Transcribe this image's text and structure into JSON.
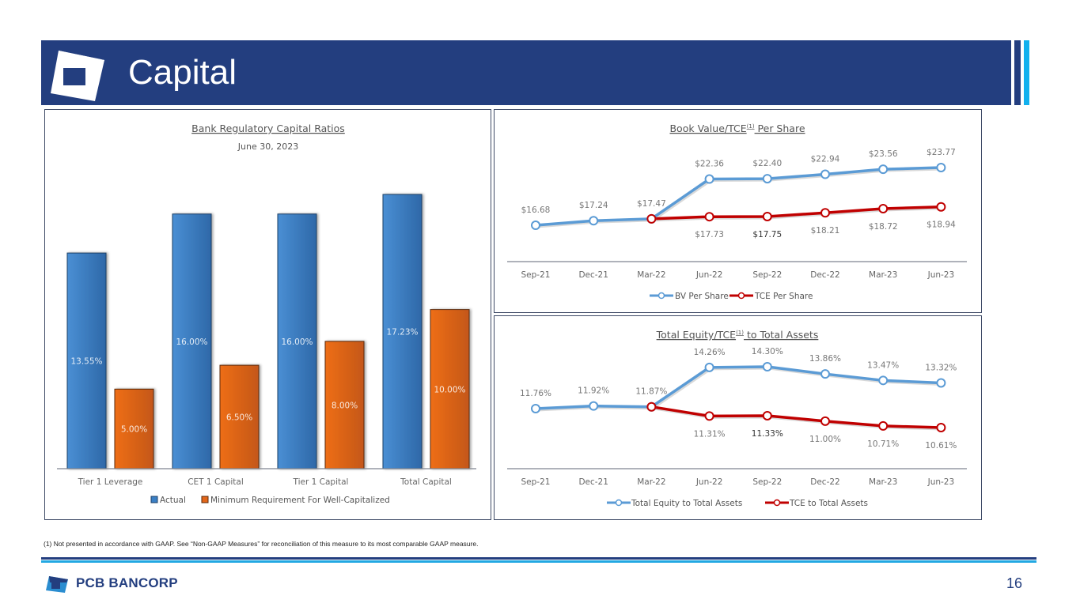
{
  "header": {
    "title": "Capital",
    "colors": {
      "banner": "#233E7F",
      "accent": "#12B0EE"
    }
  },
  "chart_data": [
    {
      "type": "bar",
      "title": "Bank Regulatory Capital Ratios",
      "subtitle": "June 30, 2023",
      "categories": [
        "Tier 1 Leverage",
        "CET 1 Capital",
        "Tier 1 Capital",
        "Total Capital"
      ],
      "series": [
        {
          "name": "Actual",
          "values": [
            13.55,
            16.0,
            16.0,
            17.23
          ],
          "labels": [
            "13.55%",
            "16.00%",
            "16.00%",
            "17.23%"
          ],
          "color": "#3A7FC4"
        },
        {
          "name": "Minimum Requirement For Well-Capitalized",
          "values": [
            5.0,
            6.5,
            8.0,
            10.0
          ],
          "labels": [
            "5.00%",
            "6.50%",
            "8.00%",
            "10.00%"
          ],
          "color": "#E2661A"
        }
      ],
      "xlabel": "",
      "ylabel": "",
      "ylim": [
        0,
        17.23
      ],
      "grid": false,
      "legend": "bottom"
    },
    {
      "type": "line",
      "title": "Book Value/TCE",
      "title_superscript": "(1)",
      "title_suffix": " Per Share",
      "categories": [
        "Sep-21",
        "Dec-21",
        "Mar-22",
        "Jun-22",
        "Sep-22",
        "Dec-22",
        "Mar-23",
        "Jun-23"
      ],
      "series": [
        {
          "name": "BV Per Share",
          "values": [
            16.68,
            17.24,
            17.47,
            22.36,
            22.4,
            22.94,
            23.56,
            23.77
          ],
          "labels": [
            "$16.68",
            "$17.24",
            "$17.47",
            "$22.36",
            "$22.40",
            "$22.94",
            "$23.56",
            "$23.77"
          ],
          "color": "#5B9BD5"
        },
        {
          "name": "TCE Per Share",
          "values": [
            null,
            null,
            17.47,
            17.73,
            17.75,
            18.21,
            18.72,
            18.94
          ],
          "labels": [
            "",
            "",
            "",
            "$17.73",
            "$17.75",
            "$18.21",
            "$18.72",
            "$18.94"
          ],
          "color": "#C00000"
        }
      ],
      "grid": false,
      "legend": "bottom"
    },
    {
      "type": "line",
      "title": "Total Equity/TCE",
      "title_superscript": "(1)",
      "title_suffix": " to Total Assets",
      "categories": [
        "Sep-21",
        "Dec-21",
        "Mar-22",
        "Jun-22",
        "Sep-22",
        "Dec-22",
        "Mar-23",
        "Jun-23"
      ],
      "series": [
        {
          "name": "Total Equity to Total Assets",
          "values": [
            11.76,
            11.92,
            11.87,
            14.26,
            14.3,
            13.86,
            13.47,
            13.32
          ],
          "labels": [
            "11.76%",
            "11.92%",
            "11.87%",
            "14.26%",
            "14.30%",
            "13.86%",
            "13.47%",
            "13.32%"
          ],
          "color": "#5B9BD5"
        },
        {
          "name": "TCE to Total Assets",
          "values": [
            null,
            null,
            11.87,
            11.31,
            11.33,
            11.0,
            10.71,
            10.61
          ],
          "labels": [
            "",
            "",
            "",
            "11.31%",
            "11.33%",
            "11.00%",
            "10.71%",
            "10.61%"
          ],
          "color": "#C00000"
        }
      ],
      "grid": false,
      "legend": "bottom"
    }
  ],
  "footnote": "(1)    Not presented in accordance with GAAP. See “Non-GAAP Measures” for reconciliation of this measure to its most comparable GAAP measure.",
  "footer": {
    "brand": "PCB BANCORP",
    "page_number": "16"
  }
}
